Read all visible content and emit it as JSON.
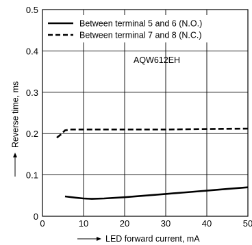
{
  "chart_data": {
    "type": "line",
    "x_ticks": [
      "0",
      "10",
      "20",
      "30",
      "40",
      "50"
    ],
    "y_ticks": [
      "0",
      "0.1",
      "0.2",
      "0.3",
      "0.4",
      "0.5"
    ],
    "xlim": [
      0,
      50
    ],
    "ylim": [
      0,
      0.5
    ],
    "xlabel": "LED forward current, mA",
    "ylabel": "Reverse time, ms",
    "annotation": "AQW612EH",
    "grid": true,
    "legend_position": "top",
    "series": [
      {
        "name": "Between terminal 5 and 6 (N.O.)",
        "style": "solid",
        "x": [
          5.5,
          8,
          10,
          12,
          15,
          20,
          25,
          30,
          35,
          40,
          45,
          50
        ],
        "y": [
          0.048,
          0.045,
          0.043,
          0.042,
          0.043,
          0.046,
          0.05,
          0.054,
          0.058,
          0.062,
          0.066,
          0.07
        ]
      },
      {
        "name": "Between terminal 7 and 8 (N.C.)",
        "style": "dashed",
        "x": [
          3.5,
          4.5,
          5.5,
          7,
          10,
          20,
          30,
          40,
          50
        ],
        "y": [
          0.19,
          0.198,
          0.208,
          0.21,
          0.21,
          0.21,
          0.21,
          0.211,
          0.212
        ]
      }
    ]
  }
}
